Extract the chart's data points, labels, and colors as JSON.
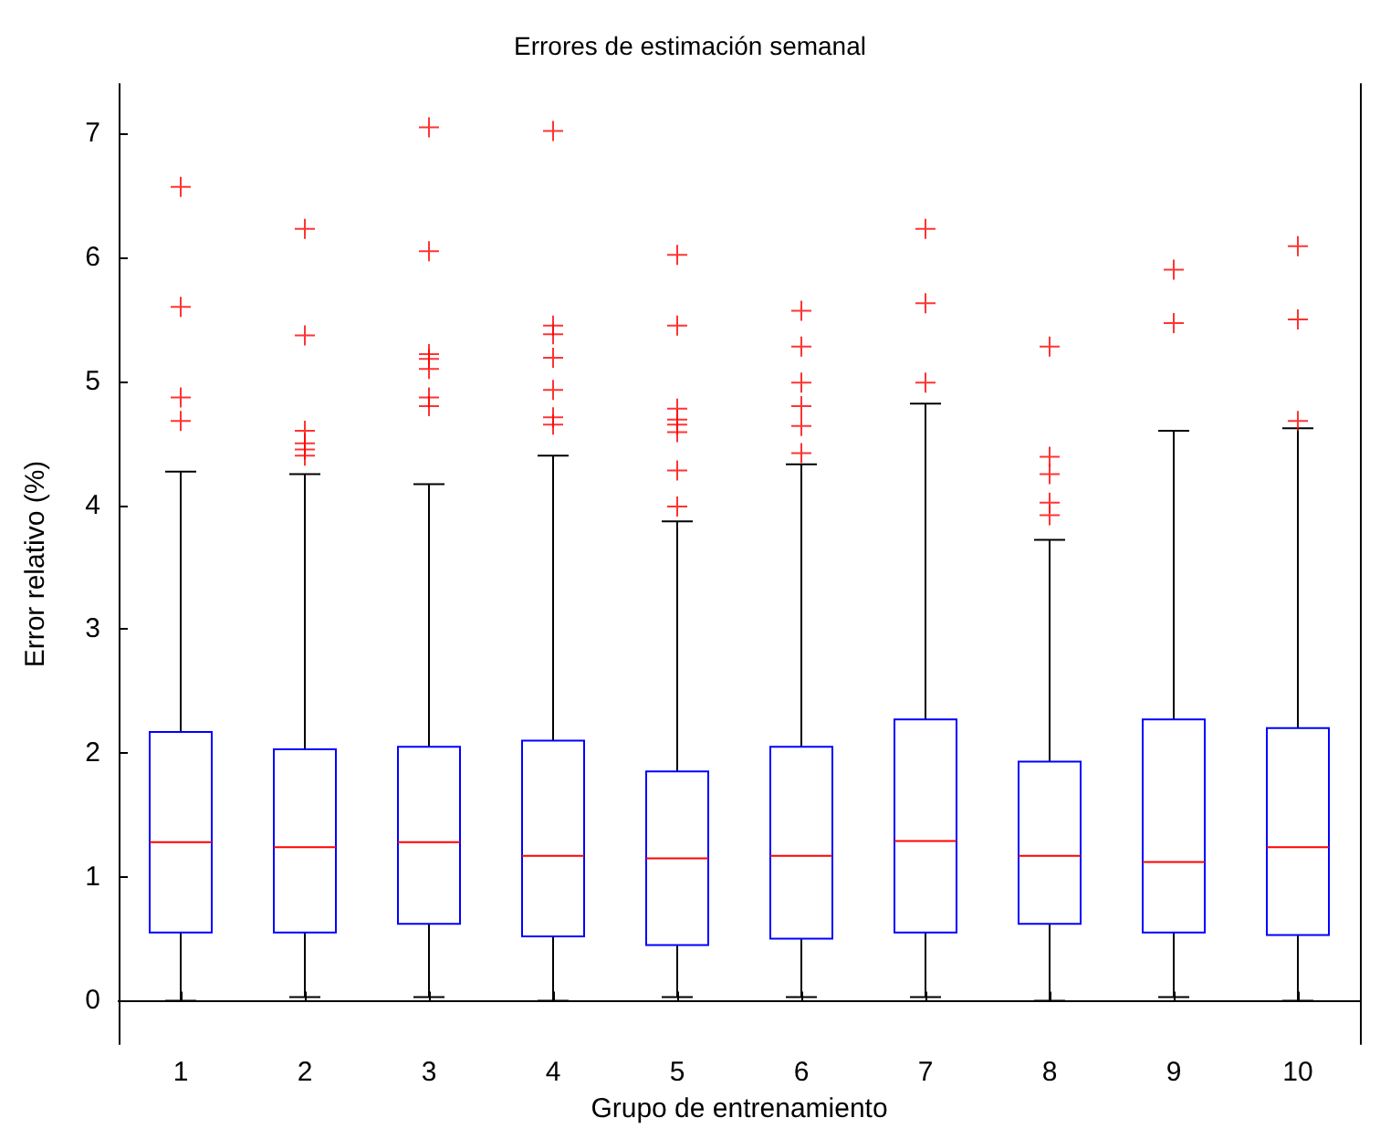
{
  "chart_data": {
    "type": "box",
    "title": "Errores de estimación semanal",
    "xlabel": "Grupo de entrenamiento",
    "ylabel": "Error relativo (%)",
    "categories": [
      "1",
      "2",
      "3",
      "4",
      "5",
      "6",
      "7",
      "8",
      "9",
      "10"
    ],
    "color": "#0000ff",
    "marker": "cross",
    "boxes": [
      {
        "low": 0,
        "q1": 0.55,
        "median": 1.28,
        "q3": 2.17,
        "high": 4.27,
        "outliers": [
          6.57,
          5.6,
          4.87,
          4.68
        ]
      },
      {
        "low": 0.03,
        "q1": 0.55,
        "median": 1.24,
        "q3": 2.03,
        "high": 4.25,
        "outliers": [
          6.23,
          5.37,
          4.6,
          4.5,
          4.45,
          4.4
        ]
      },
      {
        "low": 0.03,
        "q1": 0.62,
        "median": 1.28,
        "q3": 2.05,
        "high": 4.17,
        "outliers": [
          7.05,
          6.05,
          5.22,
          5.18,
          5.1,
          4.87,
          4.8
        ]
      },
      {
        "low": 0,
        "q1": 0.52,
        "median": 1.17,
        "q3": 2.1,
        "high": 4.4,
        "outliers": [
          7.02,
          5.45,
          5.38,
          5.19,
          4.93,
          4.71,
          4.65
        ]
      },
      {
        "low": 0.03,
        "q1": 0.45,
        "median": 1.15,
        "q3": 1.85,
        "high": 3.87,
        "outliers": [
          6.02,
          5.45,
          4.78,
          4.69,
          4.65,
          4.59,
          4.28,
          3.99
        ]
      },
      {
        "low": 0.03,
        "q1": 0.5,
        "median": 1.17,
        "q3": 2.05,
        "high": 4.33,
        "outliers": [
          5.57,
          5.28,
          4.99,
          4.8,
          4.64,
          4.42
        ]
      },
      {
        "low": 0.03,
        "q1": 0.55,
        "median": 1.29,
        "q3": 2.27,
        "high": 4.82,
        "outliers": [
          6.23,
          5.63,
          4.99
        ]
      },
      {
        "low": 0,
        "q1": 0.62,
        "median": 1.17,
        "q3": 1.93,
        "high": 3.72,
        "outliers": [
          5.28,
          4.39,
          4.25,
          4.02,
          3.92
        ]
      },
      {
        "low": 0.03,
        "q1": 0.55,
        "median": 1.12,
        "q3": 2.27,
        "high": 4.6,
        "outliers": [
          5.9,
          5.47
        ]
      },
      {
        "low": 0,
        "q1": 0.53,
        "median": 1.24,
        "q3": 2.2,
        "high": 4.62,
        "outliers": [
          6.09,
          5.5,
          4.68
        ]
      }
    ],
    "ylim": [
      -0.35,
      7.4
    ],
    "yticks": [
      0,
      1,
      2,
      3,
      4,
      5,
      6,
      7
    ]
  }
}
